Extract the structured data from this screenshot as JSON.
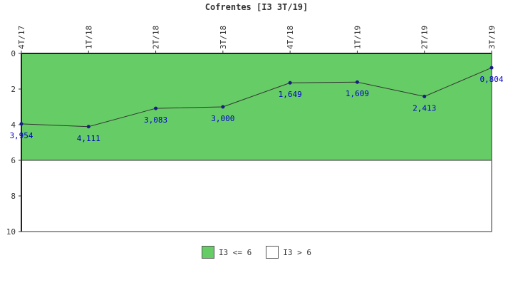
{
  "title": "Cofrentes [I3 3T/19]",
  "colors": {
    "band_ok": "#66cc66",
    "band_bad": "#ffffff",
    "line": "#333333",
    "marker": "#1a1a8c",
    "label": "#0000cc"
  },
  "legend": [
    {
      "label": "I3 <= 6",
      "color": "#66cc66"
    },
    {
      "label": "I3 > 6",
      "color": "#ffffff"
    }
  ],
  "chart_data": {
    "type": "line",
    "title": "Cofrentes [I3 3T/19]",
    "categories": [
      "4T/17",
      "1T/18",
      "2T/18",
      "3T/18",
      "4T/18",
      "1T/19",
      "2T/19",
      "3T/19"
    ],
    "values": [
      3.954,
      4.111,
      3.083,
      3.0,
      1.649,
      1.609,
      2.413,
      0.804
    ],
    "value_labels": [
      "3,954",
      "4,111",
      "3,083",
      "3,000",
      "1,649",
      "1,609",
      "2,413",
      "0,804"
    ],
    "ylim": [
      0,
      10
    ],
    "y_inverted": true,
    "y_ticks": [
      0,
      2,
      4,
      6,
      8,
      10
    ],
    "threshold": 6,
    "x_axis_position": "top",
    "grid": false,
    "legend_position": "bottom"
  }
}
